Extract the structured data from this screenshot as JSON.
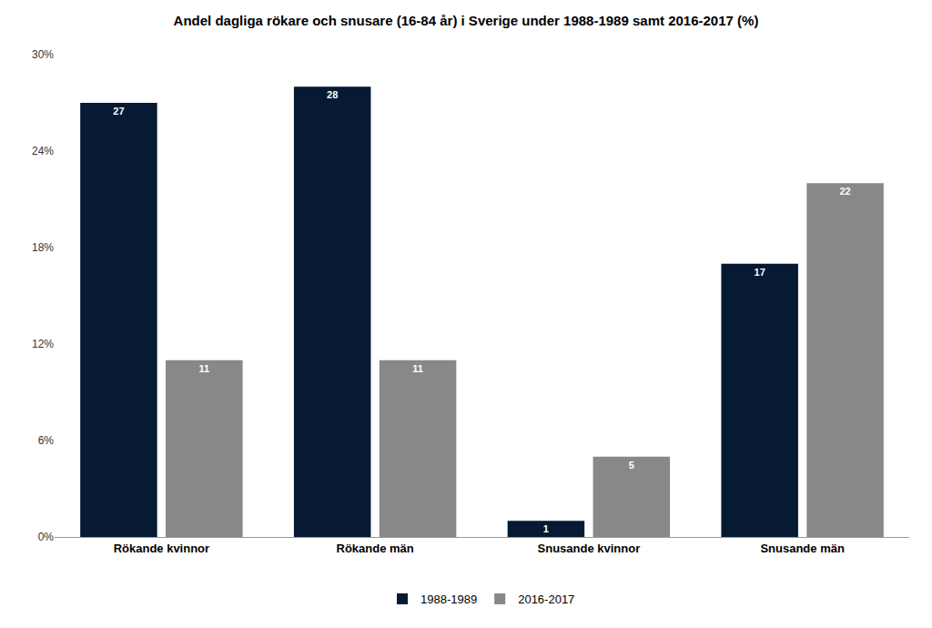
{
  "chart_data": {
    "type": "bar",
    "title": "Andel dagliga rökare och snusare (16-84 år) i Sverige under 1988-1989 samt 2016-2017 (%)",
    "categories": [
      "Rökande kvinnor",
      "Rökande män",
      "Snusande kvinnor",
      "Snusande män"
    ],
    "series": [
      {
        "name": "1988-1989",
        "color": "#061a33",
        "values": [
          27,
          28,
          1,
          17
        ]
      },
      {
        "name": "2016-2017",
        "color": "#888888",
        "values": [
          11,
          11,
          5,
          22
        ]
      }
    ],
    "ylim": [
      0,
      30
    ],
    "yticks": [
      {
        "value": 0,
        "label": "0%"
      },
      {
        "value": 6,
        "label": "6%"
      },
      {
        "value": 12,
        "label": "12%"
      },
      {
        "value": 18,
        "label": "18%"
      },
      {
        "value": 24,
        "label": "24%"
      },
      {
        "value": 30,
        "label": "30%"
      }
    ],
    "grid": false,
    "legend": "bottom",
    "data_labels": true
  }
}
